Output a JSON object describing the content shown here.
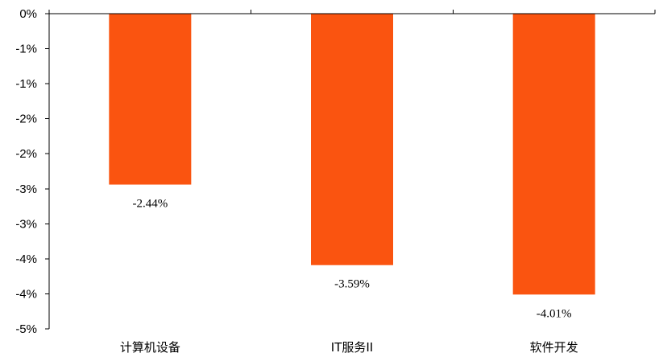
{
  "chart_data": {
    "type": "bar",
    "title": "",
    "xlabel": "",
    "ylabel": "",
    "categories": [
      "计算机设备",
      "IT服务II",
      "软件开发"
    ],
    "values": [
      -2.44,
      -3.59,
      -4.01
    ],
    "data_labels": [
      "-2.44%",
      "-3.59%",
      "-4.01%"
    ],
    "ylim": [
      -4.5,
      0
    ],
    "y_ticks": [
      0,
      -0.5,
      -1,
      -1.5,
      -2,
      -2.5,
      -3,
      -3.5,
      -4,
      -4.5
    ],
    "y_tick_labels": [
      "0%",
      "-1%",
      "-1%",
      "-2%",
      "-2%",
      "-3%",
      "-3%",
      "-4%",
      "-4%",
      "-5%"
    ],
    "bar_color": "#fa5410",
    "grid": false,
    "legend": "none"
  }
}
